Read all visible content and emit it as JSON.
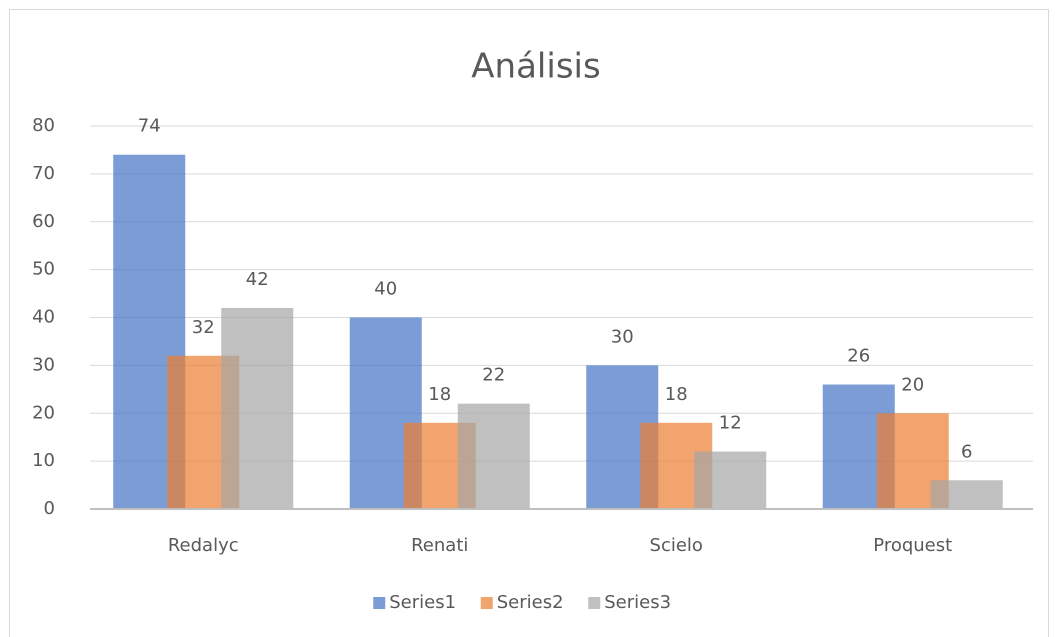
{
  "chart_data": {
    "type": "bar",
    "title": "Análisis",
    "categories": [
      "Redalyc",
      "Renati",
      "Scielo",
      "Proquest"
    ],
    "series": [
      {
        "name": "Series1",
        "color": "#4472c4",
        "values": [
          74,
          40,
          30,
          26
        ]
      },
      {
        "name": "Series2",
        "color": "#ed7d31",
        "values": [
          32,
          18,
          18,
          20
        ]
      },
      {
        "name": "Series3",
        "color": "#a5a5a5",
        "values": [
          42,
          22,
          12,
          6
        ]
      }
    ],
    "ylim": [
      0,
      80
    ],
    "yticks": [
      0,
      10,
      20,
      30,
      40,
      50,
      60,
      70,
      80
    ],
    "grid": true,
    "legend": "bottom"
  }
}
